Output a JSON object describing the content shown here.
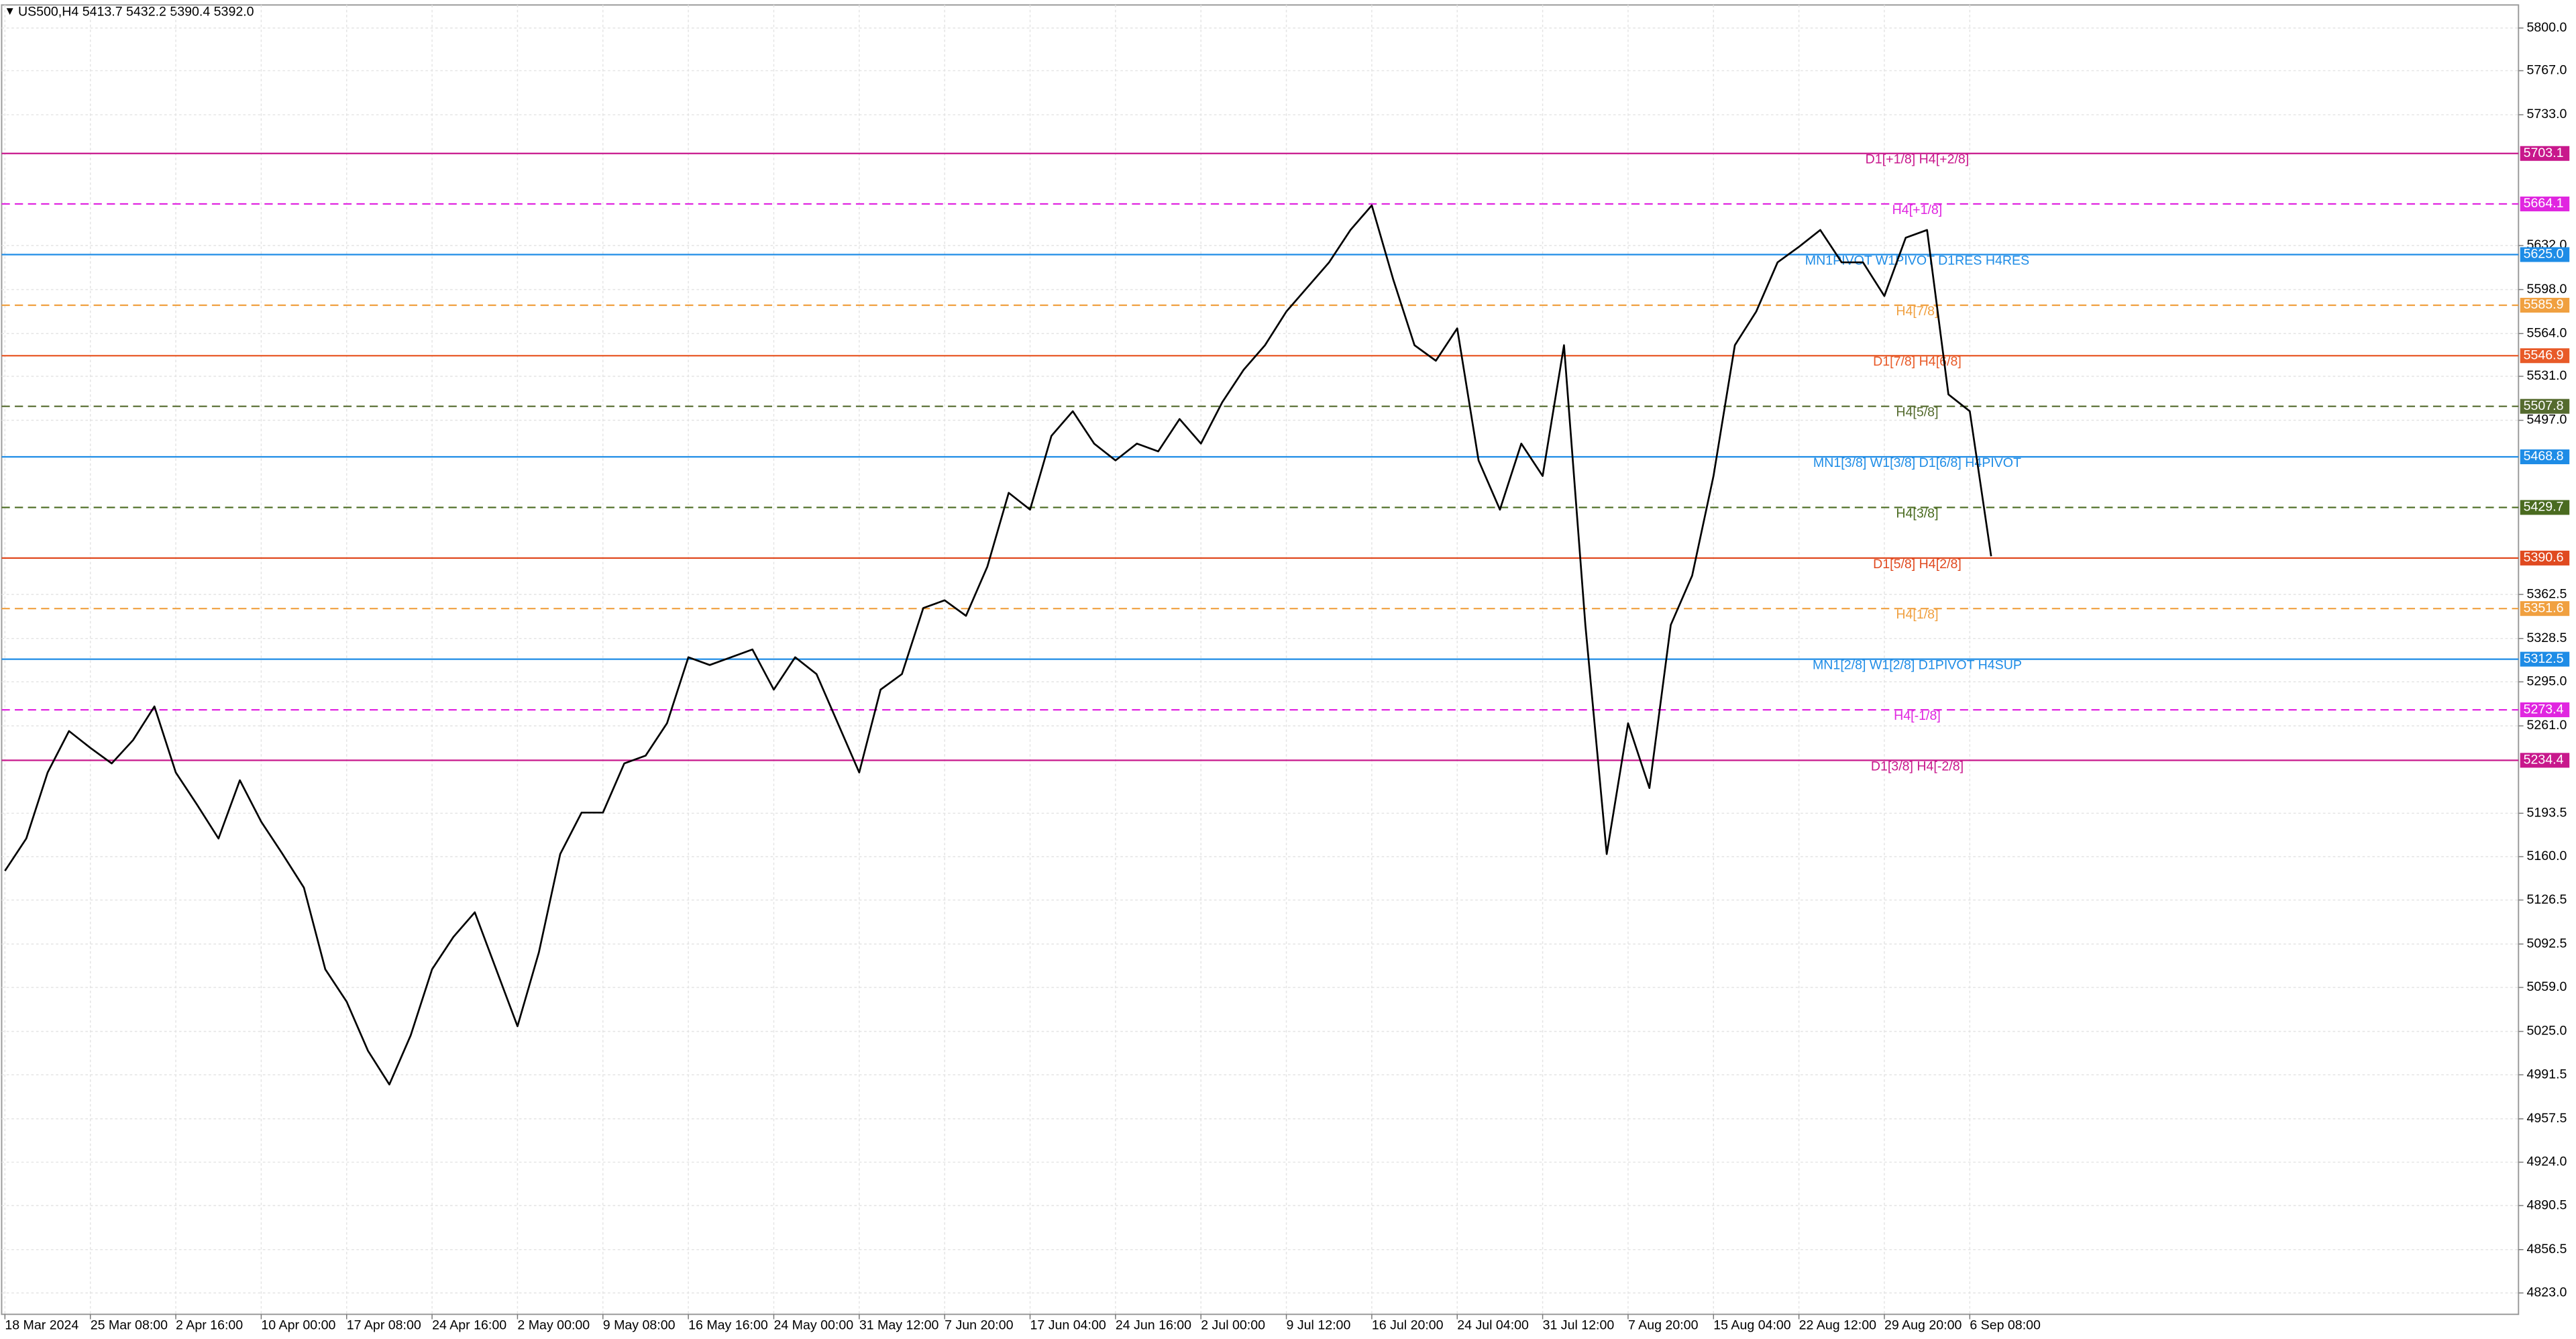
{
  "chart_data": {
    "type": "line",
    "title": "US500,H4  5413.7 5432.2 5390.4 5392.0",
    "color": "#000000",
    "grid": true,
    "ylim": [
      4806.5,
      5817.8
    ],
    "yticks": [
      {
        "value": 5800,
        "label": "5800.0"
      },
      {
        "value": 5767,
        "label": "5767.0"
      },
      {
        "value": 5733,
        "label": "5733.0"
      },
      {
        "value": 5632,
        "label": "5632.0"
      },
      {
        "value": 5598,
        "label": "5598.0"
      },
      {
        "value": 5564,
        "label": "5564.0"
      },
      {
        "value": 5531,
        "label": "5531.0"
      },
      {
        "value": 5497,
        "label": "5497.0"
      },
      5362.5,
      5328.5,
      {
        "value": 5295,
        "label": "5295.0"
      },
      {
        "value": 5261,
        "label": "5261.0"
      },
      5193.5,
      {
        "value": 5160,
        "label": "5160.0"
      },
      5126.5,
      5092.5,
      {
        "value": 5059,
        "label": "5059.0"
      },
      {
        "value": 5025,
        "label": "5025.0"
      },
      4991.5,
      4957.5,
      {
        "value": 4924,
        "label": "4924.0"
      },
      4890.5,
      4856.5,
      {
        "value": 4823,
        "label": "4823.0"
      }
    ],
    "categories": [
      "18 Mar 2024",
      null,
      null,
      null,
      "25 Mar 08:00",
      null,
      null,
      null,
      "2 Apr 16:00",
      null,
      null,
      null,
      "10 Apr 00:00",
      null,
      null,
      null,
      "17 Apr 08:00",
      null,
      null,
      null,
      "24 Apr 16:00",
      null,
      null,
      null,
      "2 May 00:00",
      null,
      null,
      null,
      "9 May 08:00",
      null,
      null,
      null,
      "16 May 16:00",
      null,
      null,
      null,
      "24 May 00:00",
      null,
      null,
      null,
      "31 May 12:00",
      null,
      null,
      null,
      "7 Jun 20:00",
      null,
      null,
      null,
      "17 Jun 04:00",
      null,
      null,
      null,
      "24 Jun 16:00",
      null,
      null,
      null,
      "2 Jul 00:00",
      null,
      null,
      null,
      "9 Jul 12:00",
      null,
      null,
      null,
      "16 Jul 20:00",
      null,
      null,
      null,
      "24 Jul 04:00",
      null,
      null,
      null,
      "31 Jul 12:00",
      null,
      null,
      null,
      "7 Aug 20:00",
      null,
      null,
      null,
      "15 Aug 04:00",
      null,
      null,
      null,
      "22 Aug 12:00",
      null,
      null,
      null,
      "29 Aug 20:00",
      null,
      null,
      null,
      "6 Sep 08:00",
      null
    ],
    "values": [
      5149,
      5174,
      5225,
      5257,
      5244,
      5232,
      5250,
      5276,
      5225,
      5200,
      5174,
      5219,
      5187,
      5162,
      5136,
      5073,
      5048,
      5010,
      4984,
      5022,
      5073,
      5098,
      5117,
      5073,
      5029,
      5086,
      5162,
      5194,
      5194,
      5232,
      5238,
      5263,
      5314,
      5308,
      5314,
      5320,
      5289,
      5314,
      5301,
      5263,
      5225,
      5289,
      5301,
      5352,
      5358,
      5346,
      5384,
      5441,
      5428,
      5485,
      5504,
      5479,
      5466,
      5479,
      5473,
      5498,
      5479,
      5511,
      5536,
      5555,
      5581,
      5600,
      5619,
      5644,
      5663,
      5606,
      5555,
      5543,
      5568,
      5466,
      5428,
      5479,
      5454,
      5555,
      5339,
      5162,
      5263,
      5213,
      5339,
      5377,
      5454,
      5555,
      5581,
      5619,
      5631,
      5644,
      5619,
      5619,
      5593,
      5638,
      5644,
      5517,
      5504,
      5392
    ],
    "levels": [
      {
        "value": 5703.1,
        "value_label": "5703.1",
        "label": "D1[+1/8] H4[+2/8]",
        "color": "#c8188c",
        "dashed": false
      },
      {
        "value": 5664.1,
        "value_label": "5664.1",
        "label": "H4[+1/8]",
        "color": "#e026e0",
        "dashed": true
      },
      {
        "value": 5625.0,
        "value_label": "5625.0",
        "label": "MN1PIVOT W1PIVOT D1RES H4RES",
        "color": "#1e8ce6",
        "dashed": false
      },
      {
        "value": 5585.9,
        "value_label": "5585.9",
        "label": "H4[7/8]",
        "color": "#f0a040",
        "dashed": true
      },
      {
        "value": 5546.9,
        "value_label": "5546.9",
        "label": "D1[7/8] H4[6/8]",
        "color": "#e85a28",
        "dashed": false
      },
      {
        "value": 5507.8,
        "value_label": "5507.8",
        "label": "H4[5/8]",
        "color": "#556b2f",
        "dashed": true
      },
      {
        "value": 5468.8,
        "value_label": "5468.8",
        "label": "MN1[3/8] W1[3/8] D1[6/8] H4PIVOT",
        "color": "#1e8ce6",
        "dashed": false
      },
      {
        "value": 5429.7,
        "value_label": "5429.7",
        "label": "H4[3/8]",
        "color": "#4a6b20",
        "dashed": true
      },
      {
        "value": 5390.6,
        "value_label": "5390.6",
        "label": "D1[5/8] H4[2/8]",
        "color": "#e04a20",
        "dashed": false
      },
      {
        "value": 5351.6,
        "value_label": "5351.6",
        "label": "H4[1/8]",
        "color": "#f0a040",
        "dashed": true
      },
      {
        "value": 5312.5,
        "value_label": "5312.5",
        "label": "MN1[2/8] W1[2/8] D1PIVOT H4SUP",
        "color": "#1e8ce6",
        "dashed": false
      },
      {
        "value": 5273.4,
        "value_label": "5273.4",
        "label": "H4[-1/8]",
        "color": "#e026e0",
        "dashed": true
      },
      {
        "value": 5234.4,
        "value_label": "5234.4",
        "label": "D1[3/8] H4[-2/8]",
        "color": "#c8188c",
        "dashed": false
      }
    ]
  }
}
